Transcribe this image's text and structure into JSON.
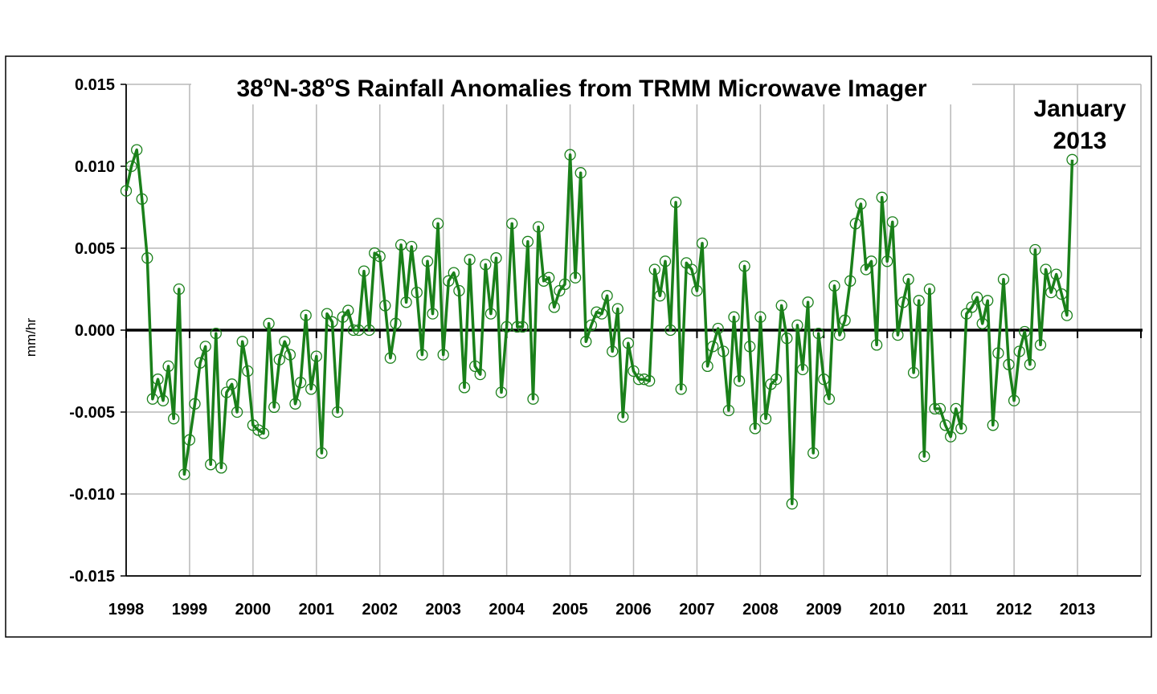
{
  "chart_data": {
    "type": "line",
    "title_parts": [
      "38",
      "o",
      "N-38",
      "o",
      "S Rainfall Anomalies from TRMM Microwave Imager"
    ],
    "ylabel": "mm/hr",
    "xlabel": "",
    "annotation": [
      "January",
      "2013"
    ],
    "ylim": [
      -0.015,
      0.015
    ],
    "yticks": [
      "0.015",
      "0.010",
      "0.005",
      "0.000",
      "-0.005",
      "-0.010",
      "-0.015"
    ],
    "xlim": [
      1998.0,
      2014.0
    ],
    "xticks": [
      "1998",
      "1999",
      "2000",
      "2001",
      "2002",
      "2003",
      "2004",
      "2005",
      "2006",
      "2007",
      "2008",
      "2009",
      "2010",
      "2011",
      "2012",
      "2013"
    ],
    "grid": true,
    "zero_line": true,
    "legend": "none",
    "color": "#1a801a",
    "x_start": 1998.0,
    "x_step": 0.0833333,
    "values": [
      0.0085,
      0.01,
      0.011,
      0.008,
      0.0044,
      -0.0042,
      -0.003,
      -0.0043,
      -0.0022,
      -0.0054,
      0.0025,
      -0.0088,
      -0.0067,
      -0.0045,
      -0.002,
      -0.001,
      -0.0082,
      -0.0002,
      -0.0084,
      -0.0038,
      -0.0033,
      -0.005,
      -0.0007,
      -0.0025,
      -0.0058,
      -0.0061,
      -0.0063,
      0.0004,
      -0.0047,
      -0.0018,
      -0.0007,
      -0.0015,
      -0.0045,
      -0.0032,
      0.0009,
      -0.0036,
      -0.0016,
      -0.0075,
      0.001,
      0.0005,
      -0.005,
      0.0008,
      0.0012,
      0.0,
      0.0,
      0.0036,
      0.0,
      0.0047,
      0.0045,
      0.0015,
      -0.0017,
      0.0004,
      0.0052,
      0.0017,
      0.0051,
      0.0023,
      -0.0015,
      0.0042,
      0.001,
      0.0065,
      -0.0015,
      0.003,
      0.0035,
      0.0024,
      -0.0035,
      0.0043,
      -0.0022,
      -0.0027,
      0.004,
      0.001,
      0.0044,
      -0.0038,
      0.0002,
      0.0065,
      0.0002,
      0.0002,
      0.0054,
      -0.0042,
      0.0063,
      0.003,
      0.0032,
      0.0014,
      0.0024,
      0.0028,
      0.0107,
      0.0032,
      0.0096,
      -0.0007,
      0.0003,
      0.0011,
      0.001,
      0.0021,
      -0.0013,
      0.0013,
      -0.0053,
      -0.0008,
      -0.0025,
      -0.003,
      -0.003,
      -0.0031,
      0.0037,
      0.0021,
      0.0042,
      0.0,
      0.0078,
      -0.0036,
      0.0041,
      0.0037,
      0.0024,
      0.0053,
      -0.0022,
      -0.001,
      0.0001,
      -0.0013,
      -0.0049,
      0.0008,
      -0.0031,
      0.0039,
      -0.001,
      -0.006,
      0.0008,
      -0.0054,
      -0.0033,
      -0.003,
      0.0015,
      -0.0005,
      -0.0106,
      0.0003,
      -0.0024,
      0.0017,
      -0.0075,
      -0.0002,
      -0.003,
      -0.0042,
      0.0027,
      -0.0003,
      0.0006,
      0.003,
      0.0065,
      0.0077,
      0.0037,
      0.0042,
      -0.0009,
      0.0081,
      0.0042,
      0.0066,
      -0.0003,
      0.0017,
      0.0031,
      -0.0026,
      0.0018,
      -0.0077,
      0.0025,
      -0.0048,
      -0.0048,
      -0.0058,
      -0.0065,
      -0.0048,
      -0.006,
      0.001,
      0.0014,
      0.002,
      0.0004,
      0.0018,
      -0.0058,
      -0.0014,
      0.0031,
      -0.0021,
      -0.0043,
      -0.0013,
      -0.0001,
      -0.0021,
      0.0049,
      -0.0009,
      0.0037,
      0.0023,
      0.0034,
      0.0022,
      0.0009,
      0.0104
    ]
  }
}
